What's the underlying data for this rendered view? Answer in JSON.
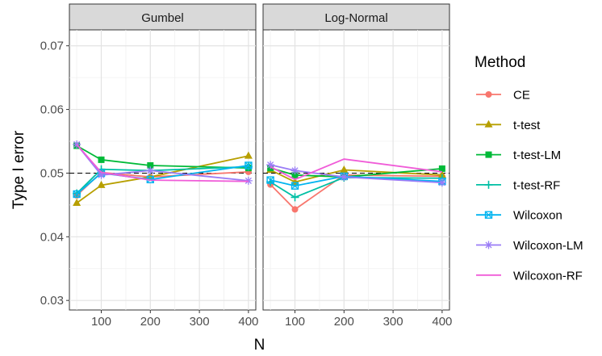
{
  "chart_data": {
    "type": "line",
    "ylabel": "Type I error",
    "xlabel": "N",
    "ylim": [
      0.0285,
      0.0725
    ],
    "xlim": [
      35,
      415
    ],
    "y_ticks": [
      0.03,
      0.04,
      0.05,
      0.06,
      0.07
    ],
    "y_tick_labels": [
      "0.03",
      "0.04",
      "0.05",
      "0.06",
      "0.07"
    ],
    "x_ticks": [
      100,
      200,
      300,
      400
    ],
    "x_tick_labels": [
      "100",
      "200",
      "300",
      "400"
    ],
    "reference_line": 0.05,
    "grid": true,
    "legend_title": "Method",
    "legend_position": "right",
    "x": [
      50,
      100,
      200,
      400
    ],
    "panels": [
      {
        "title": "Gumbel",
        "series": [
          {
            "name": "CE",
            "values": [
              0.0465,
              0.0501,
              0.0494,
              0.0502
            ]
          },
          {
            "name": "t-test",
            "values": [
              0.0453,
              0.0481,
              0.0494,
              0.0527
            ]
          },
          {
            "name": "t-test-LM",
            "values": [
              0.0543,
              0.0521,
              0.0512,
              0.0508
            ]
          },
          {
            "name": "t-test-RF",
            "values": [
              0.0468,
              0.0506,
              0.0504,
              0.051
            ]
          },
          {
            "name": "Wilcoxon",
            "values": [
              0.0467,
              0.05,
              0.049,
              0.0512
            ]
          },
          {
            "name": "Wilcoxon-LM",
            "values": [
              0.0545,
              0.0497,
              0.0504,
              0.0488
            ]
          },
          {
            "name": "Wilcoxon-RF",
            "values": [
              0.0545,
              0.0501,
              0.0489,
              0.0487
            ]
          }
        ]
      },
      {
        "title": "Log-Normal",
        "series": [
          {
            "name": "CE",
            "values": [
              0.0482,
              0.0443,
              0.0497,
              0.0495
            ]
          },
          {
            "name": "t-test",
            "values": [
              0.0505,
              0.0486,
              0.0505,
              0.0497
            ]
          },
          {
            "name": "t-test-LM",
            "values": [
              0.0508,
              0.0497,
              0.0494,
              0.0507
            ]
          },
          {
            "name": "t-test-RF",
            "values": [
              0.0486,
              0.0462,
              0.0493,
              0.0492
            ]
          },
          {
            "name": "Wilcoxon",
            "values": [
              0.0489,
              0.048,
              0.0495,
              0.0487
            ]
          },
          {
            "name": "Wilcoxon-LM",
            "values": [
              0.0513,
              0.0504,
              0.0494,
              0.0485
            ]
          },
          {
            "name": "Wilcoxon-RF",
            "values": [
              0.051,
              0.049,
              0.0522,
              0.0502
            ]
          }
        ]
      }
    ],
    "series_styles": [
      {
        "name": "CE",
        "color": "#F8766D",
        "marker": "circle"
      },
      {
        "name": "t-test",
        "color": "#B79F00",
        "marker": "triangle"
      },
      {
        "name": "t-test-LM",
        "color": "#00BA38",
        "marker": "square"
      },
      {
        "name": "t-test-RF",
        "color": "#00BFA4",
        "marker": "plus"
      },
      {
        "name": "Wilcoxon",
        "color": "#00B4F0",
        "marker": "boxed-x"
      },
      {
        "name": "Wilcoxon-LM",
        "color": "#9A7CF6",
        "marker": "asterisk"
      },
      {
        "name": "Wilcoxon-RF",
        "color": "#F05CD8",
        "marker": "none"
      }
    ]
  }
}
